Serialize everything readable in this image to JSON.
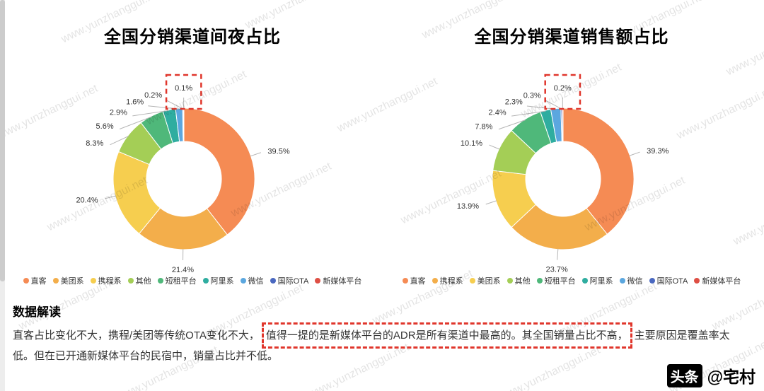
{
  "watermark": {
    "text": "www.yunzhanggui.net"
  },
  "chart_data": [
    {
      "type": "pie",
      "donut": true,
      "title": "全国分销渠道间夜占比",
      "unit": "%",
      "labels": [
        "直客",
        "美团系",
        "携程系",
        "其他",
        "短租平台",
        "阿里系",
        "微信",
        "国际OTA",
        "新媒体平台"
      ],
      "values": [
        39.5,
        21.4,
        20.4,
        8.3,
        5.6,
        2.9,
        1.6,
        0.2,
        0.1
      ],
      "colors": [
        "#F58B54",
        "#F3AE4B",
        "#F6CE4F",
        "#A4CE56",
        "#4FB87A",
        "#2FADA0",
        "#5BA7DF",
        "#4A68C0",
        "#DE4F44"
      ],
      "legend_position": "bottom",
      "labels_outside": true,
      "highlighted_slice": "新媒体平台",
      "highlight_color": "#E0362C"
    },
    {
      "type": "pie",
      "donut": true,
      "title": "全国分销渠道销售额占比",
      "unit": "%",
      "labels": [
        "直客",
        "携程系",
        "美团系",
        "其他",
        "短租平台",
        "阿里系",
        "微信",
        "国际OTA",
        "新媒体平台"
      ],
      "values": [
        39.3,
        23.7,
        13.9,
        10.1,
        7.8,
        2.4,
        2.3,
        0.3,
        0.2
      ],
      "colors": [
        "#F58B54",
        "#F3AE4B",
        "#F6CE4F",
        "#A4CE56",
        "#4FB87A",
        "#2FADA0",
        "#5BA7DF",
        "#4A68C0",
        "#DE4F44"
      ],
      "legend_position": "bottom",
      "labels_outside": true,
      "highlighted_slice": "新媒体平台",
      "highlight_color": "#E0362C"
    }
  ],
  "analysis": {
    "heading": "数据解读",
    "pre": "直客占比变化不大，携程/美团等传统OTA变化不大，",
    "highlight": "值得一提的是新媒体平台的ADR是所有渠道中最高的。其全国销量占比不高，",
    "post": "主要原因是覆盖率太低。但在已开通新媒体平台的民宿中，销量占比并不低。"
  },
  "footer": {
    "badge": "头条",
    "handle": "@宅村"
  },
  "colors": {
    "annotation": "#E0362C"
  }
}
